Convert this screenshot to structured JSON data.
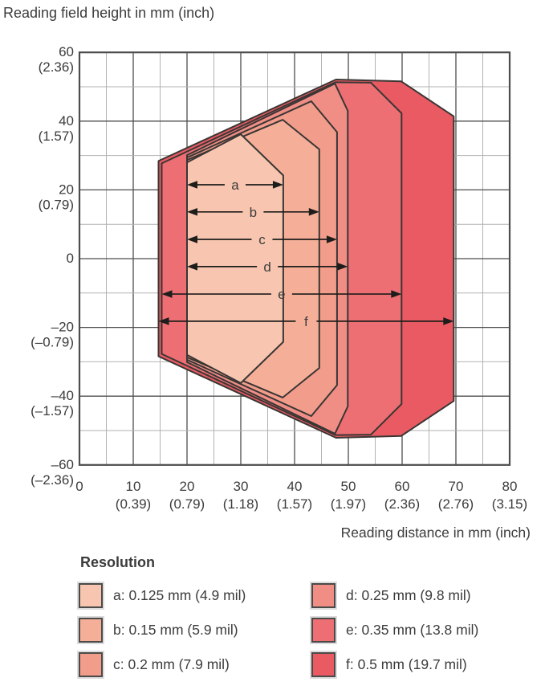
{
  "page_background": "#ffffff",
  "chart_data": {
    "type": "area",
    "y_axis_title": "Reading field height in mm (inch)",
    "x_axis_title": "Reading distance in mm (inch)",
    "x_range_mm": [
      0,
      80
    ],
    "y_range_mm": [
      -60,
      60
    ],
    "grid": {
      "x_major_mm": 10,
      "x_minor_mm": 5,
      "y_major_mm": 20,
      "y_minor_mm": 10,
      "grid_on": true
    },
    "x_ticks": [
      {
        "value": 0,
        "mm": "0",
        "inch": ""
      },
      {
        "value": 10,
        "mm": "10",
        "inch": "(0.39)"
      },
      {
        "value": 20,
        "mm": "20",
        "inch": "(0.79)"
      },
      {
        "value": 30,
        "mm": "30",
        "inch": "(1.18)"
      },
      {
        "value": 40,
        "mm": "40",
        "inch": "(1.57)"
      },
      {
        "value": 50,
        "mm": "50",
        "inch": "(1.97)"
      },
      {
        "value": 60,
        "mm": "60",
        "inch": "(2.36)"
      },
      {
        "value": 70,
        "mm": "70",
        "inch": "(2.76)"
      },
      {
        "value": 80,
        "mm": "80",
        "inch": "(3.15)"
      }
    ],
    "y_ticks": [
      {
        "value": 60,
        "mm": "60",
        "inch": "(2.36)"
      },
      {
        "value": 40,
        "mm": "40",
        "inch": "(1.57)"
      },
      {
        "value": 20,
        "mm": "20",
        "inch": "(0.79)"
      },
      {
        "value": 0,
        "mm": "0",
        "inch": ""
      },
      {
        "value": -20,
        "mm": "–20",
        "inch": "(–0.79)"
      },
      {
        "value": -40,
        "mm": "–40",
        "inch": "(–1.57)"
      },
      {
        "value": -60,
        "mm": "–60",
        "inch": "(–2.36)"
      }
    ],
    "legend": {
      "title": "Resolution",
      "position": "below-chart",
      "columns": 2
    },
    "series": [
      {
        "letter": "a",
        "legend_label": "a: 0.125 mm (4.9 mil)",
        "resolution_mm": 0.125,
        "resolution_mil": 4.9,
        "color": "#F8C6B0",
        "reading_range_mm": [
          20,
          38
        ],
        "arrow": {
          "x1": 20,
          "x2": 37.9,
          "y": 21.5,
          "label": "a"
        },
        "polygon": [
          [
            20,
            28.0
          ],
          [
            30,
            36.2
          ],
          [
            37.9,
            24.2
          ],
          [
            37.9,
            -24.2
          ],
          [
            30,
            -36.2
          ],
          [
            20,
            -28.0
          ]
        ]
      },
      {
        "letter": "b",
        "legend_label": "b: 0.15 mm (5.9 mil)",
        "resolution_mm": 0.15,
        "resolution_mil": 5.9,
        "color": "#F5AF99",
        "reading_range_mm": [
          20,
          45
        ],
        "arrow": {
          "x1": 20,
          "x2": 44.6,
          "y": 13.6,
          "label": "b"
        },
        "polygon": [
          [
            20,
            28.7
          ],
          [
            37.8,
            40.4
          ],
          [
            44.6,
            31.8
          ],
          [
            44.6,
            -31.8
          ],
          [
            37.8,
            -40.4
          ],
          [
            20,
            -28.7
          ]
        ]
      },
      {
        "letter": "c",
        "legend_label": "c: 0.2 mm (7.9 mil)",
        "resolution_mm": 0.2,
        "resolution_mil": 7.9,
        "color": "#F29C8B",
        "reading_range_mm": [
          20,
          48
        ],
        "arrow": {
          "x1": 20,
          "x2": 47.9,
          "y": 5.6,
          "label": "c"
        },
        "polygon": [
          [
            20,
            29.4
          ],
          [
            43.1,
            45.8
          ],
          [
            47.9,
            36.8
          ],
          [
            47.9,
            -36.8
          ],
          [
            43.1,
            -45.8
          ],
          [
            20,
            -29.4
          ]
        ]
      },
      {
        "letter": "d",
        "legend_label": "d: 0.25 mm (9.8 mil)",
        "resolution_mm": 0.25,
        "resolution_mil": 9.8,
        "color": "#F08E86",
        "reading_range_mm": [
          20,
          50
        ],
        "arrow": {
          "x1": 20,
          "x2": 49.9,
          "y": -2.3,
          "label": "d"
        },
        "polygon": [
          [
            20,
            30.1
          ],
          [
            47.5,
            50.9
          ],
          [
            49.9,
            43.0
          ],
          [
            49.9,
            -43.0
          ],
          [
            47.5,
            -50.9
          ],
          [
            20,
            -30.1
          ]
        ]
      },
      {
        "letter": "e",
        "legend_label": "e: 0.35 mm (13.8 mil)",
        "resolution_mm": 0.35,
        "resolution_mil": 13.8,
        "color": "#ED6F74",
        "reading_range_mm": [
          15,
          60
        ],
        "arrow": {
          "x1": 15.3,
          "x2": 59.9,
          "y": -10.3,
          "label": "e"
        },
        "polygon": [
          [
            15.3,
            27.7
          ],
          [
            47.6,
            51.3
          ],
          [
            54.2,
            51.2
          ],
          [
            59.9,
            42.3
          ],
          [
            59.9,
            -42.3
          ],
          [
            54.2,
            -51.2
          ],
          [
            47.6,
            -51.3
          ],
          [
            15.3,
            -27.7
          ]
        ]
      },
      {
        "letter": "f",
        "legend_label": "f: 0.5 mm (19.7 mil)",
        "resolution_mm": 0.5,
        "resolution_mil": 19.7,
        "color": "#EA5A63",
        "reading_range_mm": [
          15,
          70
        ],
        "arrow": {
          "x1": 14.7,
          "x2": 69.6,
          "y": -18.2,
          "label": "f"
        },
        "polygon": [
          [
            14.7,
            28.4
          ],
          [
            47.7,
            52.1
          ],
          [
            59.8,
            51.6
          ],
          [
            69.6,
            41.4
          ],
          [
            69.6,
            -41.4
          ],
          [
            59.8,
            -51.6
          ],
          [
            47.7,
            -52.1
          ],
          [
            14.7,
            -28.4
          ]
        ]
      }
    ],
    "style": {
      "grid_major": "#4d4d4c",
      "grid_minor": "#b2b2b1",
      "plot_border": "#4d4d4c",
      "outline": "#3a3634",
      "arrow": "#1d1d1b",
      "text": "#3c3c3b"
    }
  }
}
